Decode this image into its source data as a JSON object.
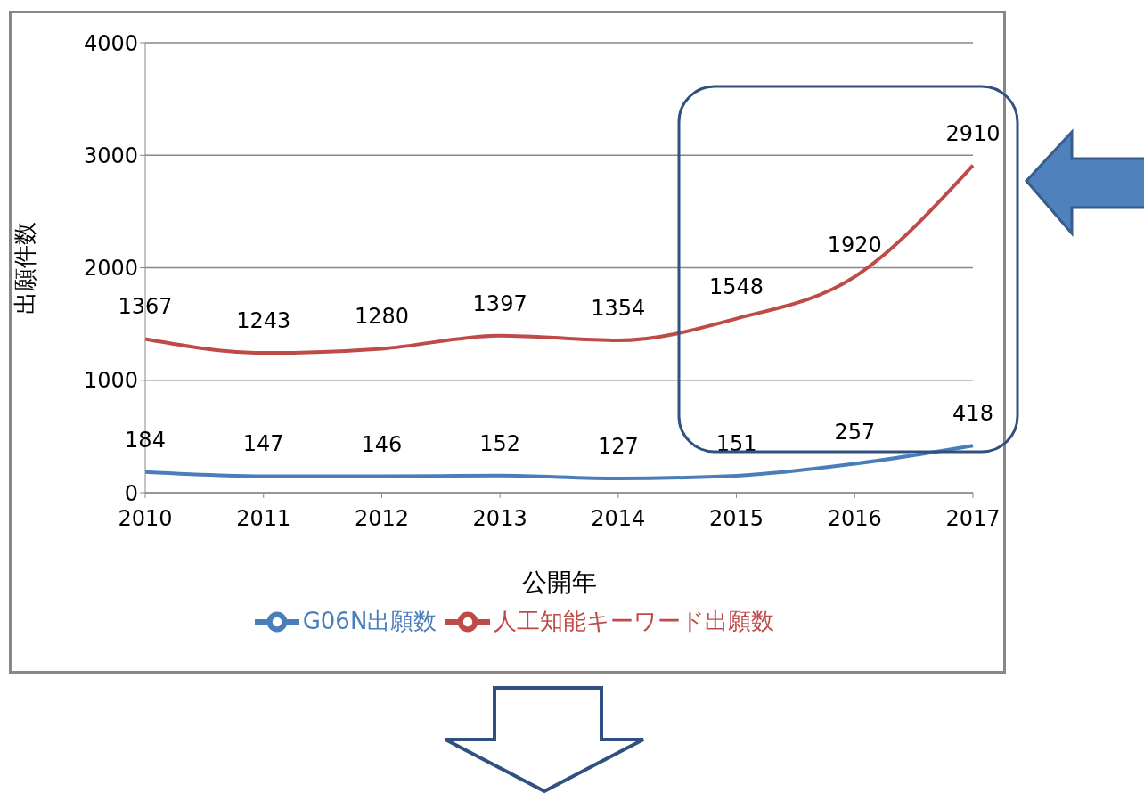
{
  "chart_data": {
    "type": "line",
    "xlabel": "公開年",
    "ylabel": "出願件数",
    "categories": [
      "2010",
      "2011",
      "2012",
      "2013",
      "2014",
      "2015",
      "2016",
      "2017"
    ],
    "series": [
      {
        "name": "G06N出願数",
        "color": "#4a7ebb",
        "values": [
          184,
          147,
          146,
          152,
          127,
          151,
          257,
          418
        ]
      },
      {
        "name": "人工知能キーワード出願数",
        "color": "#be4b48",
        "values": [
          1367,
          1243,
          1280,
          1397,
          1354,
          1548,
          1920,
          2910
        ]
      }
    ],
    "ylim": [
      0,
      4000
    ],
    "yticks": [
      0,
      1000,
      2000,
      3000,
      4000
    ],
    "grid": "y",
    "legend": "bottom",
    "marker": "none",
    "line_style": "solid",
    "data_labels": true
  }
}
